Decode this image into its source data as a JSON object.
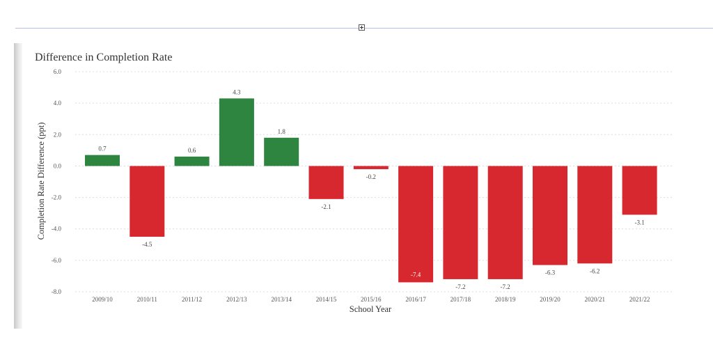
{
  "chart_data": {
    "type": "bar",
    "title": "Difference in Completion Rate",
    "xlabel": "School Year",
    "ylabel": "Completion Rate Difference (ppt)",
    "ylim": [
      -8,
      6
    ],
    "yticks": [
      "6.0",
      "4.0",
      "2.0",
      "0.0",
      "-2.0",
      "-4.0",
      "-6.0",
      "-8.0"
    ],
    "ytick_values": [
      6,
      4,
      2,
      0,
      -2,
      -4,
      -6,
      -8
    ],
    "categories": [
      "2009/10",
      "2010/11",
      "2011/12",
      "2012/13",
      "2013/14",
      "2014/15",
      "2015/16",
      "2016/17",
      "2017/18",
      "2018/19",
      "2019/20",
      "2020/21",
      "2021/22"
    ],
    "values": [
      0.7,
      -4.5,
      0.6,
      4.3,
      1.8,
      -2.1,
      -0.2,
      -7.4,
      -7.2,
      -7.2,
      -6.3,
      -6.2,
      -3.1
    ],
    "labels": [
      "0.7",
      "-4.5",
      "0.6",
      "4.3",
      "1.8",
      "-2.1",
      "-0.2",
      "-7.4",
      "-7.2",
      "-7.2",
      "-6.3",
      "-6.2",
      "-3.1"
    ],
    "colors": {
      "positive": "#2e8540",
      "negative": "#d7282f"
    },
    "grid": true,
    "legend": "none"
  }
}
